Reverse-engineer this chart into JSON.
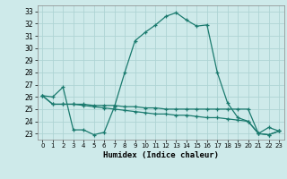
{
  "xlabel": "Humidex (Indice chaleur)",
  "bg_color": "#ceeaea",
  "line_color": "#1a7a6e",
  "grid_color": "#aed4d4",
  "xlim": [
    -0.5,
    23.5
  ],
  "ylim": [
    22.5,
    33.5
  ],
  "xticks": [
    0,
    1,
    2,
    3,
    4,
    5,
    6,
    7,
    8,
    9,
    10,
    11,
    12,
    13,
    14,
    15,
    16,
    17,
    18,
    19,
    20,
    21,
    22,
    23
  ],
  "yticks": [
    23,
    24,
    25,
    26,
    27,
    28,
    29,
    30,
    31,
    32,
    33
  ],
  "series": [
    {
      "x": [
        0,
        1,
        2,
        3,
        4,
        5,
        6,
        7,
        8,
        9,
        10,
        11,
        12,
        13,
        14,
        15,
        16,
        17,
        18,
        19,
        20,
        21,
        22,
        23
      ],
      "y": [
        26.1,
        26.0,
        26.8,
        23.3,
        23.3,
        22.9,
        23.1,
        25.2,
        28.0,
        30.6,
        31.3,
        31.9,
        32.6,
        32.9,
        32.3,
        31.8,
        31.9,
        28.0,
        25.5,
        24.3,
        24.0,
        23.0,
        23.5,
        23.2
      ]
    },
    {
      "x": [
        0,
        1,
        2,
        3,
        4,
        5,
        6,
        7,
        8,
        9,
        10,
        11,
        12,
        13,
        14,
        15,
        16,
        17,
        18,
        19,
        20,
        21,
        22,
        23
      ],
      "y": [
        26.1,
        25.4,
        25.4,
        25.4,
        25.4,
        25.3,
        25.3,
        25.3,
        25.2,
        25.2,
        25.1,
        25.1,
        25.0,
        25.0,
        25.0,
        25.0,
        25.0,
        25.0,
        25.0,
        25.0,
        25.0,
        23.0,
        22.9,
        23.2
      ]
    },
    {
      "x": [
        0,
        1,
        2,
        3,
        4,
        5,
        6,
        7,
        8,
        9,
        10,
        11,
        12,
        13,
        14,
        15,
        16,
        17,
        18,
        19,
        20,
        21,
        22,
        23
      ],
      "y": [
        26.1,
        25.4,
        25.4,
        25.4,
        25.3,
        25.2,
        25.1,
        25.0,
        24.9,
        24.8,
        24.7,
        24.6,
        24.6,
        24.5,
        24.5,
        24.4,
        24.3,
        24.3,
        24.2,
        24.1,
        24.0,
        23.0,
        22.9,
        23.2
      ]
    }
  ]
}
